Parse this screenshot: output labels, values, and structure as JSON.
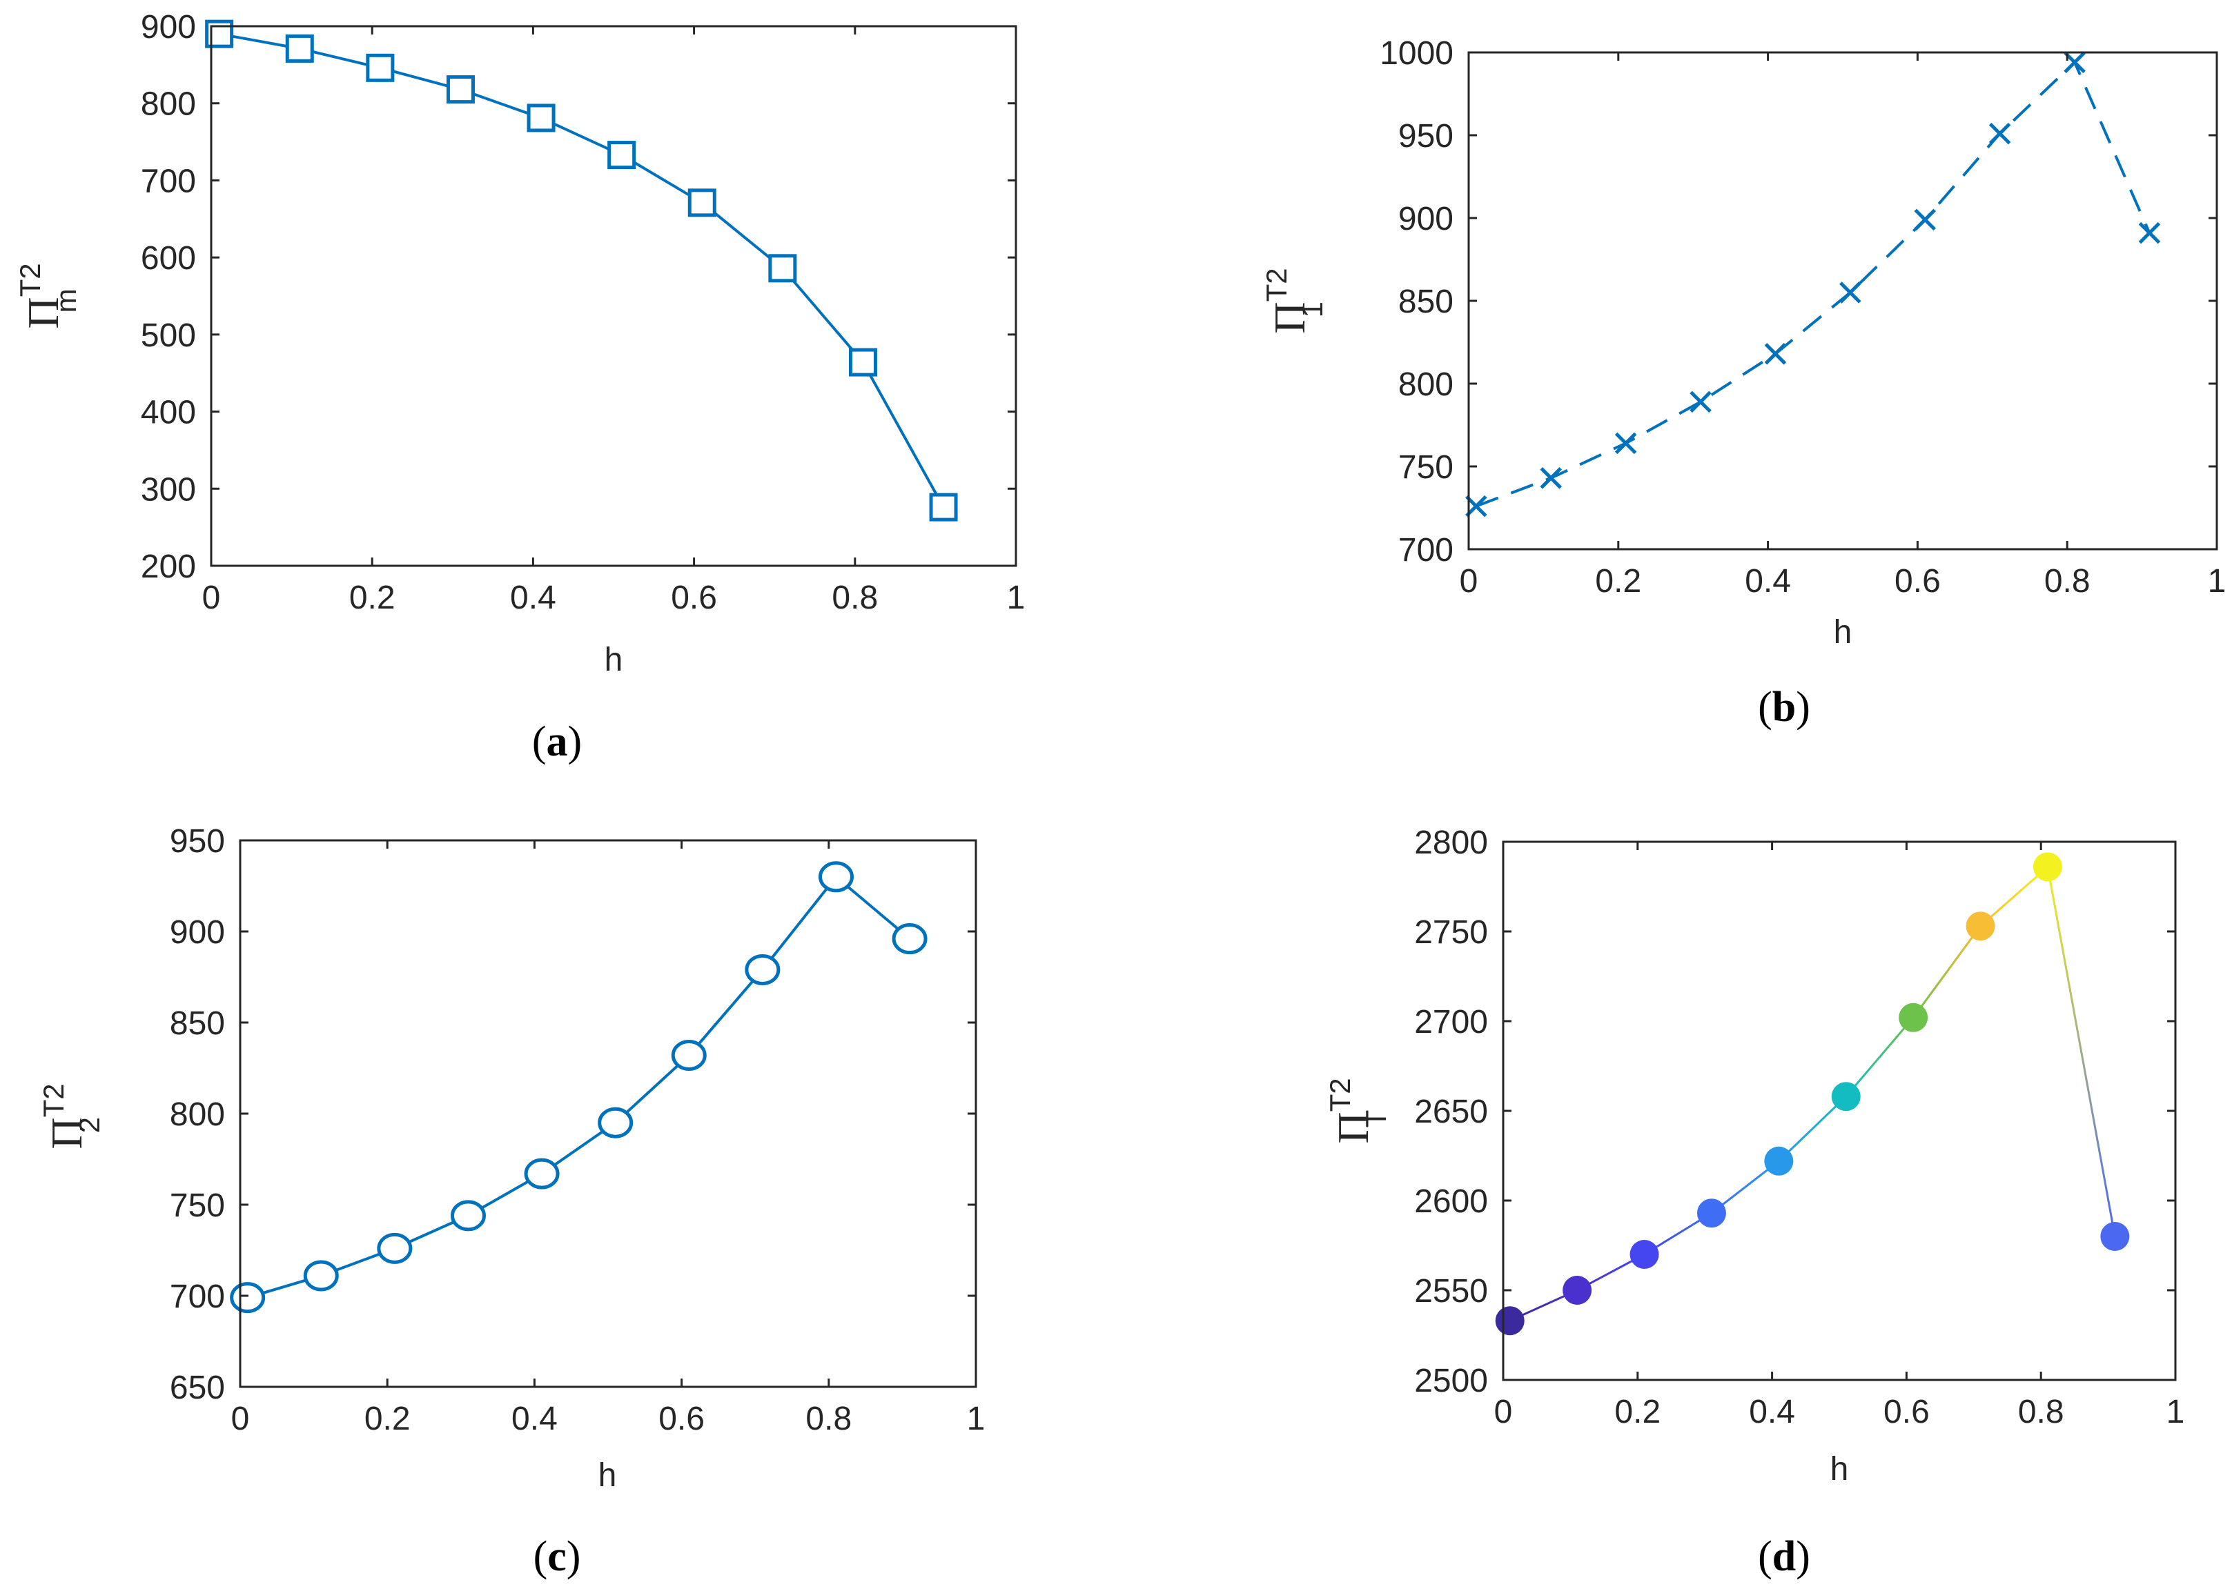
{
  "chart_data": [
    {
      "type": "line",
      "panel_label": "a",
      "marker": "square",
      "line_style": "solid",
      "color": "#0072BD",
      "x": [
        0.01,
        0.11,
        0.21,
        0.31,
        0.41,
        0.51,
        0.61,
        0.71,
        0.81,
        0.91
      ],
      "values": [
        890,
        871,
        846,
        818,
        781,
        733,
        671,
        586,
        464,
        276
      ],
      "xlabel": "h",
      "ylabel": {
        "base": "Π",
        "sup": "T2",
        "sub": "m"
      },
      "xlim": [
        0,
        1
      ],
      "ylim": [
        200,
        900
      ],
      "xticks": [
        0,
        0.2,
        0.4,
        0.6,
        0.8,
        1
      ],
      "xtick_labels": [
        "0",
        "0.2",
        "0.4",
        "0.6",
        "0.8",
        "1"
      ],
      "yticks": [
        200,
        300,
        400,
        500,
        600,
        700,
        800,
        900
      ],
      "ytick_labels": [
        "200",
        "300",
        "400",
        "500",
        "600",
        "700",
        "800",
        "900"
      ]
    },
    {
      "type": "line",
      "panel_label": "b",
      "marker": "x",
      "line_style": "dashed",
      "color": "#0072BD",
      "x": [
        0.01,
        0.11,
        0.21,
        0.31,
        0.41,
        0.51,
        0.61,
        0.71,
        0.81,
        0.91
      ],
      "values": [
        726,
        743,
        764,
        789,
        818,
        855,
        899,
        951,
        994,
        891
      ],
      "xlabel": "h",
      "ylabel": {
        "base": "Π",
        "sup": "T2",
        "sub": "1"
      },
      "xlim": [
        0,
        1
      ],
      "ylim": [
        700,
        1000
      ],
      "xticks": [
        0,
        0.2,
        0.4,
        0.6,
        0.8,
        1
      ],
      "xtick_labels": [
        "0",
        "0.2",
        "0.4",
        "0.6",
        "0.8",
        "1"
      ],
      "yticks": [
        700,
        750,
        800,
        850,
        900,
        950,
        1000
      ],
      "ytick_labels": [
        "700",
        "750",
        "800",
        "850",
        "900",
        "950",
        "1000"
      ]
    },
    {
      "type": "line",
      "panel_label": "c",
      "marker": "circle",
      "line_style": "solid",
      "color": "#0072BD",
      "x": [
        0.01,
        0.11,
        0.21,
        0.31,
        0.41,
        0.51,
        0.61,
        0.71,
        0.81,
        0.91
      ],
      "values": [
        699,
        711,
        726,
        744,
        767,
        795,
        832,
        879,
        930,
        896
      ],
      "xlabel": "h",
      "ylabel": {
        "base": "Π",
        "sup": "T2",
        "sub": "2"
      },
      "xlim": [
        0,
        1
      ],
      "ylim": [
        650,
        950
      ],
      "xticks": [
        0,
        0.2,
        0.4,
        0.6,
        0.8,
        1
      ],
      "xtick_labels": [
        "0",
        "0.2",
        "0.4",
        "0.6",
        "0.8",
        "1"
      ],
      "yticks": [
        650,
        700,
        750,
        800,
        850,
        900,
        950
      ],
      "ytick_labels": [
        "650",
        "700",
        "750",
        "800",
        "850",
        "900",
        "950"
      ]
    },
    {
      "type": "scatter",
      "panel_label": "d",
      "marker": "filled-circle",
      "line_style": "solid",
      "x": [
        0.01,
        0.11,
        0.21,
        0.31,
        0.41,
        0.51,
        0.61,
        0.71,
        0.81,
        0.91
      ],
      "values": [
        2533,
        2550,
        2570,
        2593,
        2622,
        2658,
        2702,
        2753,
        2786,
        2580
      ],
      "point_colors": [
        "#3a2a9e",
        "#4a30cc",
        "#4646f0",
        "#3f6ef5",
        "#2798ea",
        "#13bcc0",
        "#6cc24a",
        "#f7be35",
        "#f4f121",
        "#4b68f1"
      ],
      "xlabel": "h",
      "ylabel": {
        "base": "Π",
        "sup": "T2",
        "sub": "T"
      },
      "xlim": [
        0,
        1
      ],
      "ylim": [
        2500,
        2800
      ],
      "xticks": [
        0,
        0.2,
        0.4,
        0.6,
        0.8,
        1
      ],
      "xtick_labels": [
        "0",
        "0.2",
        "0.4",
        "0.6",
        "0.8",
        "1"
      ],
      "yticks": [
        2500,
        2550,
        2600,
        2650,
        2700,
        2750,
        2800
      ],
      "ytick_labels": [
        "2500",
        "2550",
        "2600",
        "2650",
        "2700",
        "2750",
        "2800"
      ]
    }
  ]
}
